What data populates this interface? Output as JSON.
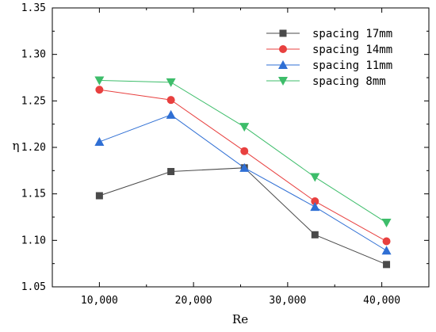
{
  "chart_data": {
    "type": "line",
    "xlabel": "Re",
    "ylabel": "η",
    "xlim": [
      5000,
      45000
    ],
    "ylim": [
      1.05,
      1.35
    ],
    "x_ticks": [
      10000,
      20000,
      30000,
      40000
    ],
    "x_tick_labels": [
      "10,000",
      "20,000",
      "30,000",
      "40,000"
    ],
    "y_ticks": [
      1.05,
      1.1,
      1.15,
      1.2,
      1.25,
      1.3,
      1.35
    ],
    "y_tick_labels": [
      "1.05",
      "1.10",
      "1.15",
      "1.20",
      "1.25",
      "1.30",
      "1.35"
    ],
    "grid": false,
    "legend_position": "top-right",
    "x": [
      10000,
      17600,
      25400,
      32900,
      40500
    ],
    "series": [
      {
        "name": "spacing 17mm",
        "marker": "square",
        "color": "#4a4a4a",
        "values": [
          1.148,
          1.174,
          1.178,
          1.106,
          1.074
        ]
      },
      {
        "name": "spacing 14mm",
        "marker": "circle",
        "color": "#e8403f",
        "values": [
          1.262,
          1.251,
          1.196,
          1.142,
          1.099
        ]
      },
      {
        "name": "spacing 11mm",
        "marker": "triangle-up",
        "color": "#2f6fd4",
        "values": [
          1.206,
          1.235,
          1.178,
          1.136,
          1.089
        ]
      },
      {
        "name": "spacing 8mm",
        "marker": "triangle-down",
        "color": "#3dbd6a",
        "values": [
          1.272,
          1.27,
          1.222,
          1.168,
          1.119
        ]
      }
    ]
  }
}
